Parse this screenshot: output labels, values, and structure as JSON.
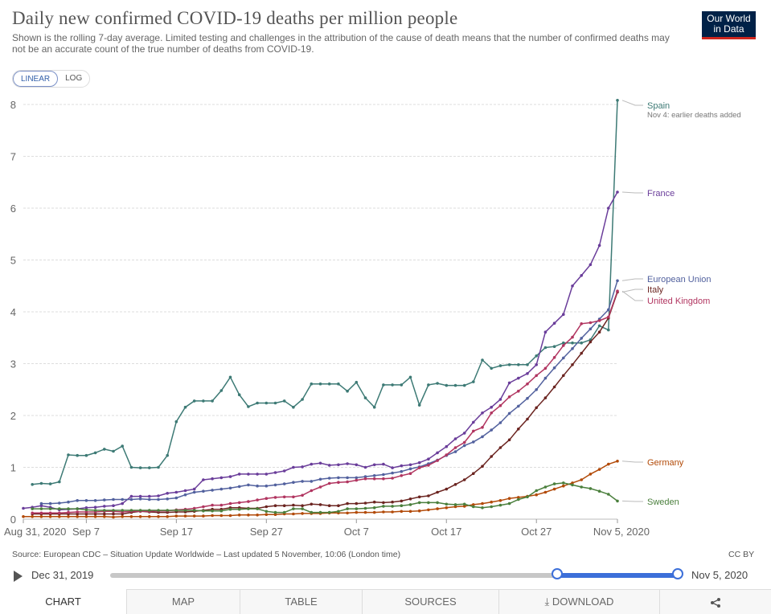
{
  "header": {
    "title": "Daily new confirmed COVID-19 deaths per million people",
    "subtitle": "Shown is the rolling 7-day average. Limited testing and challenges in the attribution of the cause of death means that the number of confirmed deaths may not be an accurate count of the true number of deaths from COVID-19.",
    "logo_line1": "Our World",
    "logo_line2": "in Data"
  },
  "scale_toggle": {
    "linear": "LINEAR",
    "log": "LOG",
    "selected": "LINEAR"
  },
  "chart_data": {
    "type": "line",
    "title": "Daily new confirmed COVID-19 deaths per million people",
    "xlabel": "",
    "ylabel": "",
    "ylim": [
      0,
      8
    ],
    "yticks": [
      "0",
      "1",
      "2",
      "3",
      "4",
      "5",
      "6",
      "7",
      "8"
    ],
    "x_tick_labels": [
      "Aug 31, 2020",
      "Sep 7",
      "Sep 17",
      "Sep 27",
      "Oct 7",
      "Oct 17",
      "Oct 27",
      "Nov 5, 2020"
    ],
    "x_tick_days": [
      0,
      7,
      17,
      27,
      37,
      47,
      57,
      66
    ],
    "x_start": "Aug 31, 2020",
    "x_end": "Nov 5, 2020",
    "annotation": "Nov 4: earlier deaths added",
    "series": [
      {
        "name": "Spain",
        "color": "#3d7a75",
        "values": [
          0.67,
          0.69,
          0.68,
          0.72,
          1.24,
          1.23,
          1.23,
          1.28,
          1.35,
          1.31,
          1.41,
          1.0,
          0.99,
          0.99,
          1.0,
          1.23,
          1.88,
          2.16,
          2.28,
          2.28,
          2.28,
          2.48,
          2.74,
          2.4,
          2.17,
          2.24,
          2.24,
          2.24,
          2.28,
          2.16,
          2.31,
          2.61,
          2.61,
          2.61,
          2.61,
          2.47,
          2.64,
          2.34,
          2.16,
          2.59,
          2.59,
          2.59,
          2.74,
          2.2,
          2.59,
          2.62,
          2.58,
          2.58,
          2.58,
          2.65,
          3.07,
          2.91,
          2.96,
          2.98,
          2.98,
          2.98,
          3.15,
          3.31,
          3.33,
          3.4,
          3.4,
          3.4,
          3.46,
          3.73,
          3.65,
          8.08
        ]
      },
      {
        "name": "France",
        "color": "#6a3d9a",
        "values": [
          0.21,
          0.23,
          0.26,
          0.23,
          0.18,
          0.19,
          0.2,
          0.22,
          0.23,
          0.25,
          0.26,
          0.3,
          0.44,
          0.44,
          0.44,
          0.45,
          0.5,
          0.52,
          0.55,
          0.58,
          0.76,
          0.78,
          0.8,
          0.82,
          0.87,
          0.87,
          0.87,
          0.87,
          0.9,
          0.93,
          1.0,
          1.01,
          1.06,
          1.08,
          1.04,
          1.05,
          1.07,
          1.05,
          1.0,
          1.05,
          1.06,
          0.99,
          1.03,
          1.05,
          1.09,
          1.16,
          1.28,
          1.4,
          1.55,
          1.66,
          1.87,
          2.05,
          2.16,
          2.31,
          2.63,
          2.72,
          2.81,
          2.98,
          3.61,
          3.78,
          3.95,
          4.5,
          4.7,
          4.91,
          5.28,
          6.0,
          6.31
        ]
      },
      {
        "name": "European Union",
        "color": "#52619e",
        "values": [
          0.3,
          0.3,
          0.31,
          0.33,
          0.36,
          0.36,
          0.36,
          0.37,
          0.38,
          0.38,
          0.38,
          0.39,
          0.38,
          0.38,
          0.39,
          0.41,
          0.47,
          0.52,
          0.54,
          0.56,
          0.58,
          0.6,
          0.63,
          0.66,
          0.64,
          0.64,
          0.66,
          0.68,
          0.71,
          0.73,
          0.73,
          0.77,
          0.79,
          0.8,
          0.8,
          0.8,
          0.82,
          0.84,
          0.86,
          0.89,
          0.92,
          0.97,
          1.01,
          1.07,
          1.14,
          1.23,
          1.3,
          1.42,
          1.49,
          1.59,
          1.72,
          1.86,
          2.04,
          2.18,
          2.33,
          2.5,
          2.72,
          2.92,
          3.11,
          3.29,
          3.49,
          3.67,
          3.86,
          4.04,
          4.6
        ]
      },
      {
        "name": "Italy",
        "color": "#6b2420",
        "values": [
          0.1,
          0.1,
          0.1,
          0.1,
          0.1,
          0.1,
          0.1,
          0.1,
          0.1,
          0.1,
          0.1,
          0.13,
          0.15,
          0.14,
          0.13,
          0.13,
          0.14,
          0.14,
          0.15,
          0.17,
          0.19,
          0.19,
          0.22,
          0.22,
          0.21,
          0.21,
          0.24,
          0.26,
          0.26,
          0.27,
          0.26,
          0.29,
          0.28,
          0.26,
          0.26,
          0.3,
          0.3,
          0.31,
          0.33,
          0.32,
          0.33,
          0.35,
          0.39,
          0.43,
          0.45,
          0.52,
          0.58,
          0.67,
          0.76,
          0.88,
          1.02,
          1.21,
          1.38,
          1.53,
          1.74,
          1.93,
          2.15,
          2.34,
          2.55,
          2.77,
          2.98,
          3.2,
          3.42,
          3.61,
          3.88,
          4.38
        ]
      },
      {
        "name": "United Kingdom",
        "color": "#b13560",
        "values": [
          0.12,
          0.12,
          0.12,
          0.12,
          0.13,
          0.14,
          0.14,
          0.14,
          0.15,
          0.15,
          0.14,
          0.15,
          0.15,
          0.15,
          0.16,
          0.16,
          0.18,
          0.19,
          0.21,
          0.24,
          0.27,
          0.27,
          0.3,
          0.32,
          0.34,
          0.37,
          0.4,
          0.42,
          0.43,
          0.43,
          0.46,
          0.55,
          0.62,
          0.69,
          0.71,
          0.72,
          0.75,
          0.78,
          0.78,
          0.78,
          0.79,
          0.84,
          0.88,
          0.99,
          1.04,
          1.13,
          1.24,
          1.38,
          1.48,
          1.7,
          1.77,
          2.05,
          2.19,
          2.36,
          2.47,
          2.61,
          2.77,
          2.91,
          3.12,
          3.35,
          3.51,
          3.77,
          3.79,
          3.83,
          3.9,
          4.4
        ]
      },
      {
        "name": "Germany",
        "color": "#b24a08",
        "values": [
          0.05,
          0.05,
          0.05,
          0.05,
          0.05,
          0.05,
          0.05,
          0.05,
          0.05,
          0.05,
          0.04,
          0.05,
          0.05,
          0.05,
          0.05,
          0.05,
          0.05,
          0.06,
          0.06,
          0.06,
          0.06,
          0.07,
          0.07,
          0.07,
          0.08,
          0.08,
          0.08,
          0.09,
          0.09,
          0.1,
          0.1,
          0.11,
          0.11,
          0.11,
          0.12,
          0.12,
          0.12,
          0.13,
          0.13,
          0.13,
          0.14,
          0.14,
          0.15,
          0.15,
          0.16,
          0.18,
          0.2,
          0.22,
          0.24,
          0.25,
          0.28,
          0.3,
          0.33,
          0.36,
          0.4,
          0.42,
          0.44,
          0.47,
          0.52,
          0.58,
          0.64,
          0.7,
          0.76,
          0.87,
          0.96,
          1.06,
          1.12
        ]
      },
      {
        "name": "Sweden",
        "color": "#4a7f3c",
        "values": [
          0.2,
          0.2,
          0.2,
          0.2,
          0.2,
          0.2,
          0.18,
          0.17,
          0.17,
          0.17,
          0.17,
          0.17,
          0.17,
          0.17,
          0.17,
          0.17,
          0.17,
          0.17,
          0.17,
          0.16,
          0.16,
          0.16,
          0.19,
          0.19,
          0.2,
          0.2,
          0.15,
          0.13,
          0.13,
          0.2,
          0.2,
          0.13,
          0.13,
          0.13,
          0.15,
          0.2,
          0.2,
          0.21,
          0.22,
          0.25,
          0.25,
          0.26,
          0.28,
          0.32,
          0.32,
          0.32,
          0.29,
          0.28,
          0.29,
          0.24,
          0.22,
          0.24,
          0.27,
          0.3,
          0.38,
          0.43,
          0.55,
          0.62,
          0.68,
          0.7,
          0.66,
          0.62,
          0.59,
          0.54,
          0.48,
          0.35
        ]
      }
    ],
    "label_display": {
      "europe_name": "European Union"
    }
  },
  "footer": {
    "source": "Source: European CDC – Situation Update Worldwide – Last updated 5 November, 10:06 (London time)",
    "license": "CC BY"
  },
  "timeline": {
    "start_label": "Dec 31, 2019",
    "end_label": "Nov 5, 2020"
  },
  "tabs": [
    {
      "label": "CHART",
      "active": true
    },
    {
      "label": "MAP"
    },
    {
      "label": "TABLE"
    },
    {
      "label": "SOURCES"
    },
    {
      "label": "⤓ DOWNLOAD"
    },
    {
      "label": "share"
    }
  ],
  "icons": {
    "share": "share-icon",
    "download": "download-icon",
    "play": "play-icon"
  }
}
